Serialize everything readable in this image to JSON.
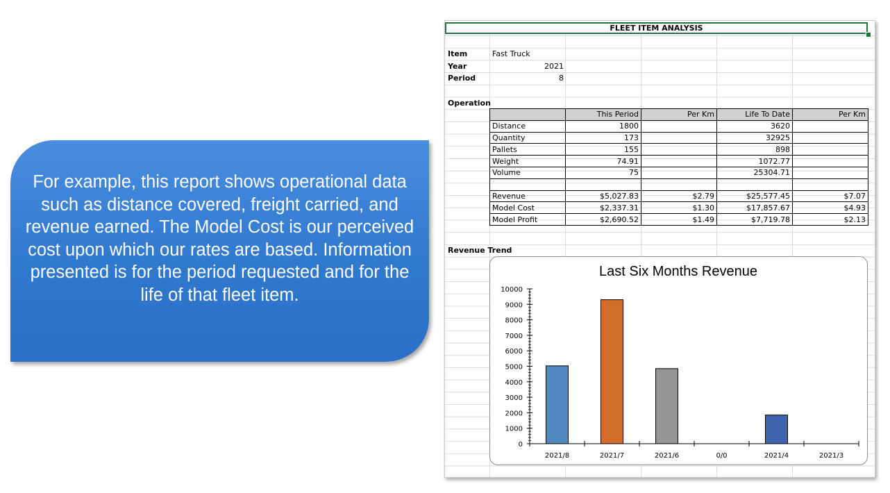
{
  "callout": {
    "text": "For example, this report shows operational data such as distance covered, freight carried, and revenue earned. The Model Cost is our perceived cost upon which our rates are based. Information presented is for the period requested and for the life of that fleet item."
  },
  "sheet": {
    "title": "FLEET ITEM ANALYSIS",
    "params": [
      {
        "label": "Item",
        "value": "Fast Truck"
      },
      {
        "label": "Year",
        "value": "2021"
      },
      {
        "label": "Period",
        "value": "8"
      }
    ],
    "operation_label": "Operation",
    "table": {
      "headers": [
        "",
        "This Period",
        "Per Km",
        "Life To Date",
        "Per Km"
      ],
      "rows": [
        [
          "Distance",
          "1800",
          "",
          "3620",
          ""
        ],
        [
          "Quantity",
          "173",
          "",
          "32925",
          ""
        ],
        [
          "Pallets",
          "155",
          "",
          "898",
          ""
        ],
        [
          "Weight",
          "74.91",
          "",
          "1072.77",
          ""
        ],
        [
          "Volume",
          "75",
          "",
          "25304.71",
          ""
        ],
        [
          "",
          "",
          "",
          "",
          ""
        ],
        [
          "Revenue",
          "$5,027.83",
          "$2.79",
          "$25,577.45",
          "$7.07"
        ],
        [
          "Model Cost",
          "$2,337.31",
          "$1.30",
          "$17,857.67",
          "$4.93"
        ],
        [
          "Model Profit",
          "$2,690.52",
          "$1.49",
          "$7,719.78",
          "$2.13"
        ]
      ]
    },
    "trend_label": "Revenue Trend"
  },
  "chart_data": {
    "type": "bar",
    "title": "Last Six Months Revenue",
    "categories": [
      "2021/8",
      "2021/7",
      "2021/6",
      "0/0",
      "2021/4",
      "2021/3"
    ],
    "values": [
      5028,
      9300,
      4850,
      0,
      1850,
      0
    ],
    "colors": [
      "#5089bf",
      "#d36d2b",
      "#969696",
      "#ffffff",
      "#3e64ad",
      "#ffffff"
    ],
    "ylim": [
      0,
      10000
    ],
    "yticks": [
      "0",
      "1000",
      "2000",
      "3000",
      "4000",
      "5000",
      "6000",
      "7000",
      "8000",
      "9000",
      "10000"
    ],
    "xlabel": "",
    "ylabel": ""
  }
}
